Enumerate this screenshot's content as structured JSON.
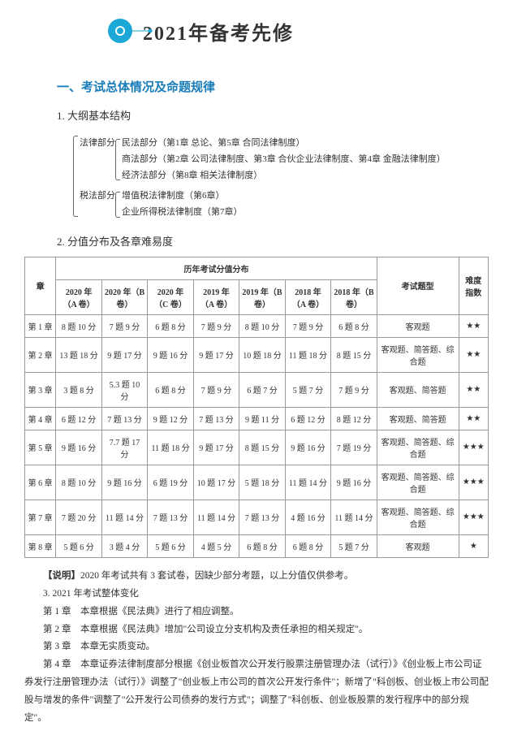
{
  "header": {
    "title": "2021年备考先修",
    "icon_outer_color": "#1ba8d6",
    "icon_inner_color": "#0a7aa8"
  },
  "section1": {
    "title": "一、考试总体情况及命题规律",
    "sub1": "1. 大纲基本结构",
    "outline": {
      "law_label": "法律部分",
      "law_items": [
        "民法部分（第1章 总论、第5章 合同法律制度）",
        "商法部分（第2章 公司法律制度、第3章 合伙企业法律制度、第4章 金融法律制度）",
        "经济法部分（第8章 相关法律制度）"
      ],
      "tax_label": "税法部分",
      "tax_items": [
        "增值税法律制度（第6章）",
        "企业所得税法律制度（第7章）"
      ]
    },
    "sub2": "2. 分值分布及各章难易度",
    "table": {
      "header_group": "历年考试分值分布",
      "col_chapter": "章",
      "col_years": [
        "2020 年（A 卷）",
        "2020 年（B 卷）",
        "2020 年（C 卷）",
        "2019 年（A 卷）",
        "2019 年（B 卷）",
        "2018 年（A 卷）",
        "2018 年（B 卷）"
      ],
      "col_type": "考试题型",
      "col_diff": "难度指数",
      "rows": [
        {
          "ch": "第 1 章",
          "cells": [
            "8 题 10 分",
            "7 题 9 分",
            "6 题 8 分",
            "7 题 9 分",
            "8 题 10 分",
            "7 题 9 分",
            "6 题 8 分"
          ],
          "type": "客观题",
          "diff": "★★"
        },
        {
          "ch": "第 2 章",
          "cells": [
            "13 题 18 分",
            "9 题 17 分",
            "9 题 16 分",
            "9 题 17 分",
            "10 题 18 分",
            "11 题 18 分",
            "8 题 15 分"
          ],
          "type": "客观题、简答题、综合题",
          "diff": "★★"
        },
        {
          "ch": "第 3 章",
          "cells": [
            "3 题 8 分",
            "5.3 题 10 分",
            "6 题 8 分",
            "7 题 9 分",
            "6 题 7 分",
            "5 题 7 分",
            "7 题 9 分"
          ],
          "type": "客观题、简答题",
          "diff": "★★"
        },
        {
          "ch": "第 4 章",
          "cells": [
            "6 题 12 分",
            "7 题 13 分",
            "9 题 12 分",
            "7 题 13 分",
            "9 题 11 分",
            "6 题 12 分",
            "8 题 12 分"
          ],
          "type": "客观题、简答题",
          "diff": "★★"
        },
        {
          "ch": "第 5 章",
          "cells": [
            "9 题 16 分",
            "7.7 题 17 分",
            "11 题 18 分",
            "9 题 17 分",
            "8 题 15 分",
            "9 题 16 分",
            "7 题 19 分"
          ],
          "type": "客观题、简答题、综合题",
          "diff": "★★★"
        },
        {
          "ch": "第 6 章",
          "cells": [
            "8 题 10 分",
            "9 题 16 分",
            "6 题 19 分",
            "10 题 17 分",
            "5 题 18 分",
            "11 题 14 分",
            "9 题 16 分"
          ],
          "type": "客观题、简答题、综合题",
          "diff": "★★★"
        },
        {
          "ch": "第 7 章",
          "cells": [
            "7 题 20 分",
            "11 题 14 分",
            "7 题 13 分",
            "11 题 14 分",
            "7 题 13 分",
            "4 题 16 分",
            "11 题 14 分"
          ],
          "type": "客观题、简答题、综合题",
          "diff": "★★★"
        },
        {
          "ch": "第 8 章",
          "cells": [
            "5 题 6 分",
            "3 题 4 分",
            "5 题 6 分",
            "4 题 5 分",
            "6 题 8 分",
            "6 题 8 分",
            "5 题 7 分"
          ],
          "type": "客观题",
          "diff": "★"
        }
      ]
    },
    "notes": {
      "note_label": "【说明】",
      "note_text": "2020 年考试共有 3 套试卷，因缺少部分考题，以上分值仅供参考。",
      "sub3": "3. 2021 年考试整体变化",
      "changes": [
        "第 1 章　本章根据《民法典》进行了相应调整。",
        "第 2 章　本章根据《民法典》增加\"公司设立分支机构及责任承担的相关规定\"。",
        "第 3 章　本章无实质变动。",
        "第 4 章　本章证券法律制度部分根据《创业板首次公开发行股票注册管理办法（试行）》《创业板上市公司证券发行注册管理办法（试行）》调整了\"创业板上市公司的首次公开发行条件\"；新增了\"科创板、创业板上市公司配股与增发的条件\"调整了\"公开发行公司债券的发行方式\"；调整了\"科创板、创业板股票的发行程序中的部分规定\"。"
      ]
    }
  }
}
